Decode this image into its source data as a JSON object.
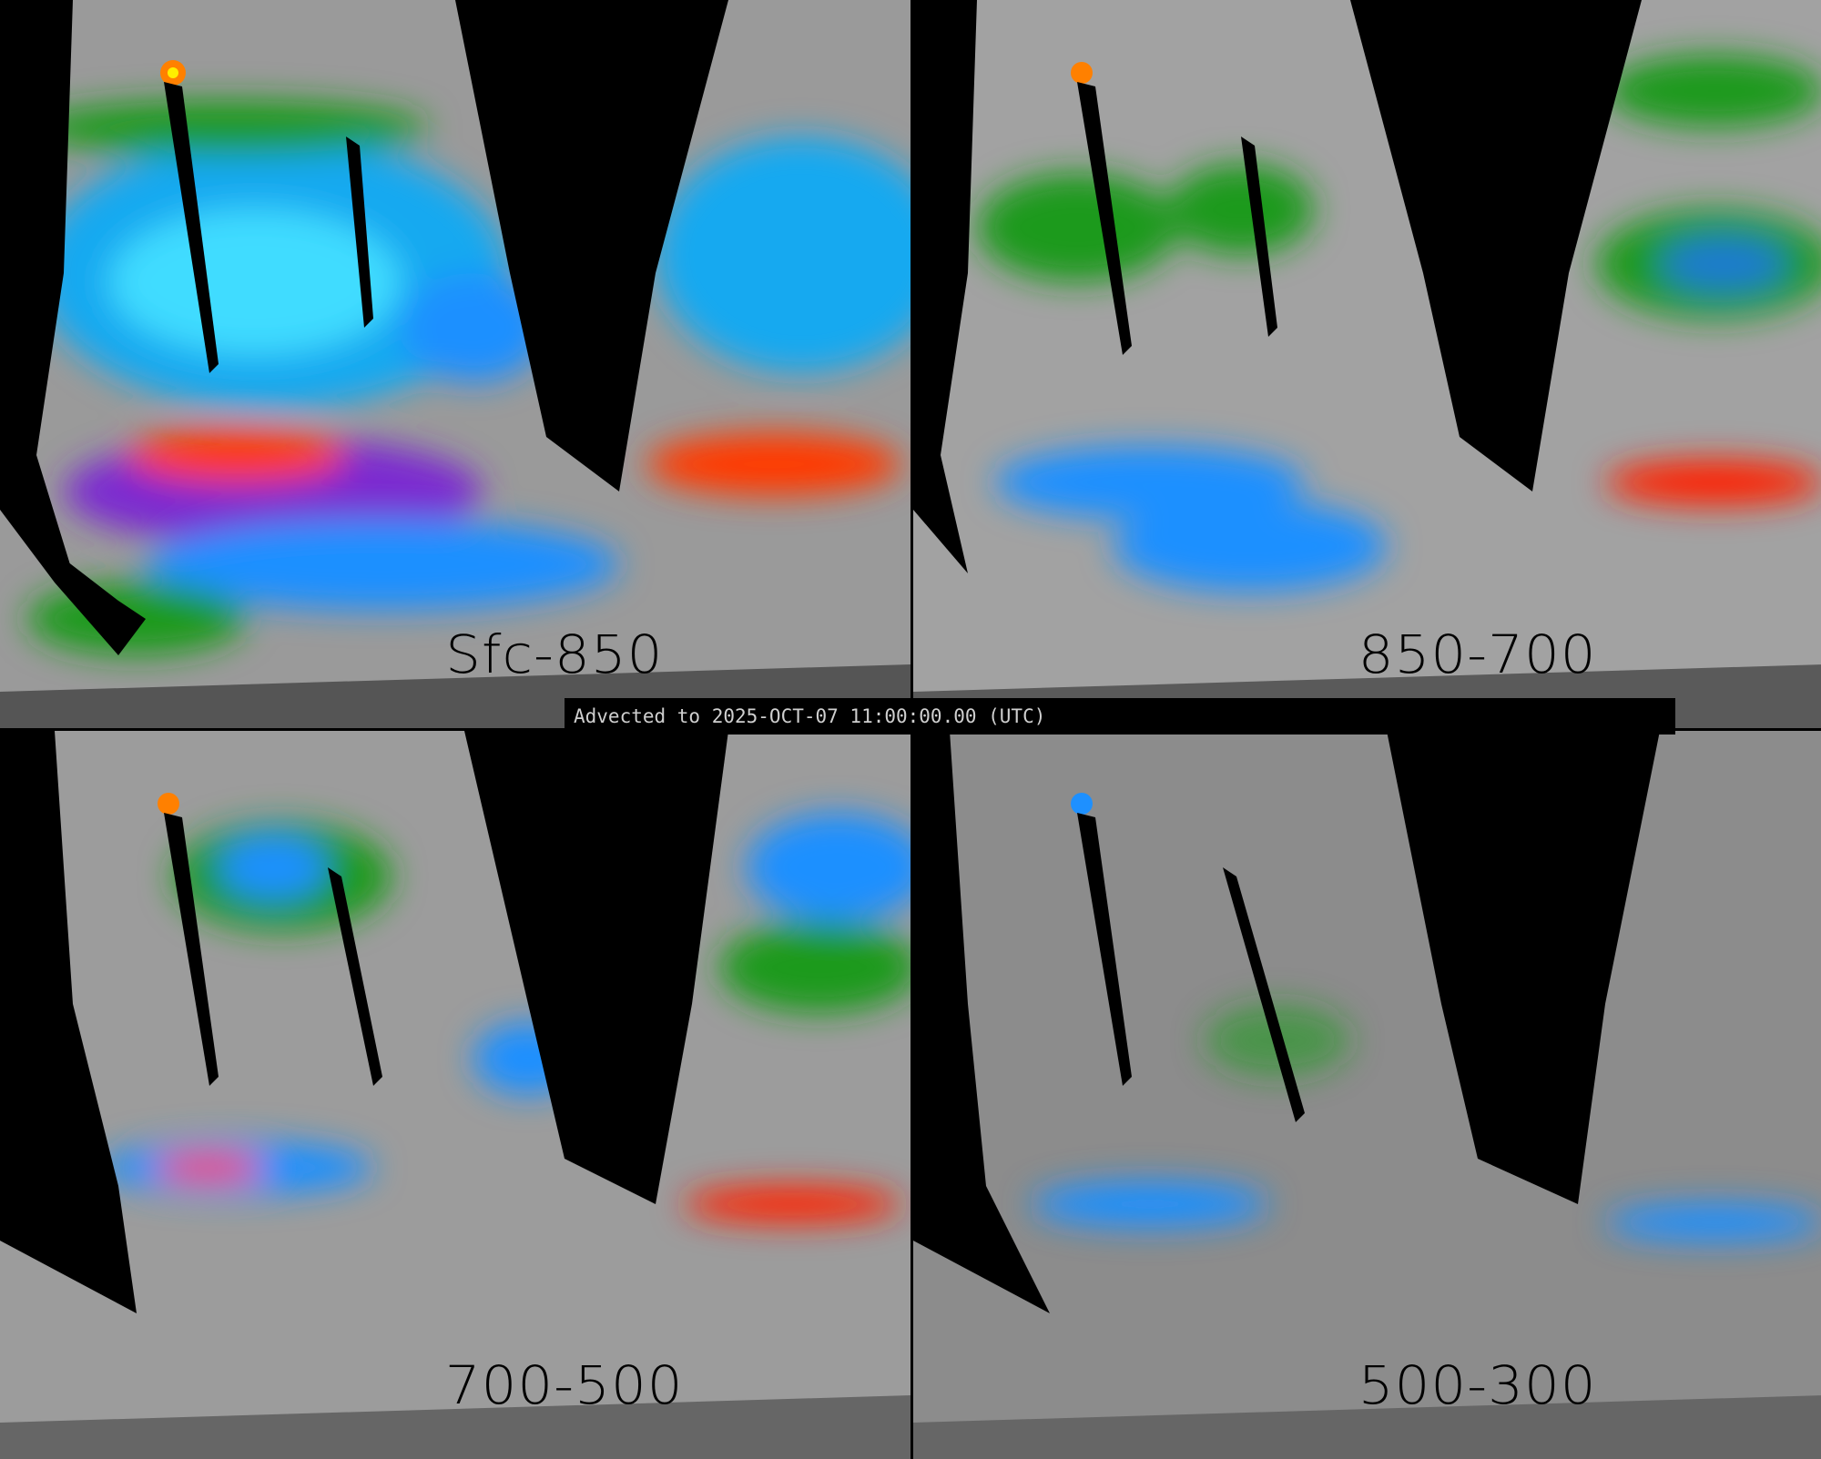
{
  "panels": [
    {
      "label": "Sfc-850"
    },
    {
      "label": "850-700"
    },
    {
      "label": "700-500"
    },
    {
      "label": "500-300"
    }
  ],
  "banner": {
    "text": "Advected to 2025-OCT-07 11:00:00.00 (UTC)"
  },
  "colors": {
    "background": "#000000",
    "low": "#8a8a8a",
    "moderate": "#1a9a1a",
    "high": "#1e90ff",
    "very_high": "#9b30d0",
    "extreme": "#ff2000"
  }
}
